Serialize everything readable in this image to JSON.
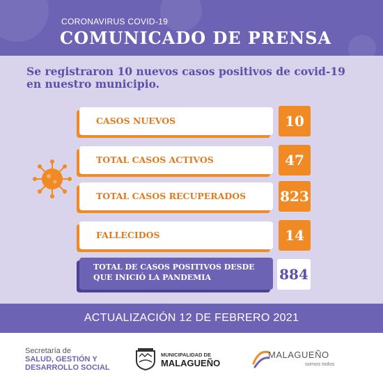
{
  "header": {
    "kicker": "CORONAVIRUS COVID-19",
    "title": "COMUNICADO DE PRENSA"
  },
  "lead": "Se registraron 10 nuevos casos positivos de covid-19 en nuestro municipio.",
  "stats": [
    {
      "label": "CASOS NUEVOS",
      "value": "10"
    },
    {
      "label": "TOTAL CASOS ACTIVOS",
      "value": "47"
    },
    {
      "label": "TOTAL CASOS RECUPERADOS",
      "value": "823"
    },
    {
      "label": "FALLECIDOS",
      "value": "14"
    }
  ],
  "total": {
    "label": "TOTAL DE CASOS POSITIVOS DESDE QUE INICIÓ LA PANDEMIA",
    "value": "884"
  },
  "update": "ACTUALIZACIÓN 12 DE FEBRERO 2021",
  "footer": {
    "secretaria_line1": "Secretaría de",
    "secretaria_line2": "SALUD, GESTIÓN Y",
    "secretaria_line3": "DESARROLLO SOCIAL",
    "municipality_line1": "MUNICIPALIDAD DE",
    "municipality_line2": "MALAGUEÑO",
    "brand_name": "MALAGUEÑO",
    "brand_tagline": "somos todos"
  },
  "colors": {
    "purple": "#6c63b5",
    "orange": "#f08a24",
    "lavender": "#d9d3ec"
  },
  "icons": [
    "coronavirus-icon",
    "municipal-shield-icon",
    "brand-swoosh-icon"
  ]
}
